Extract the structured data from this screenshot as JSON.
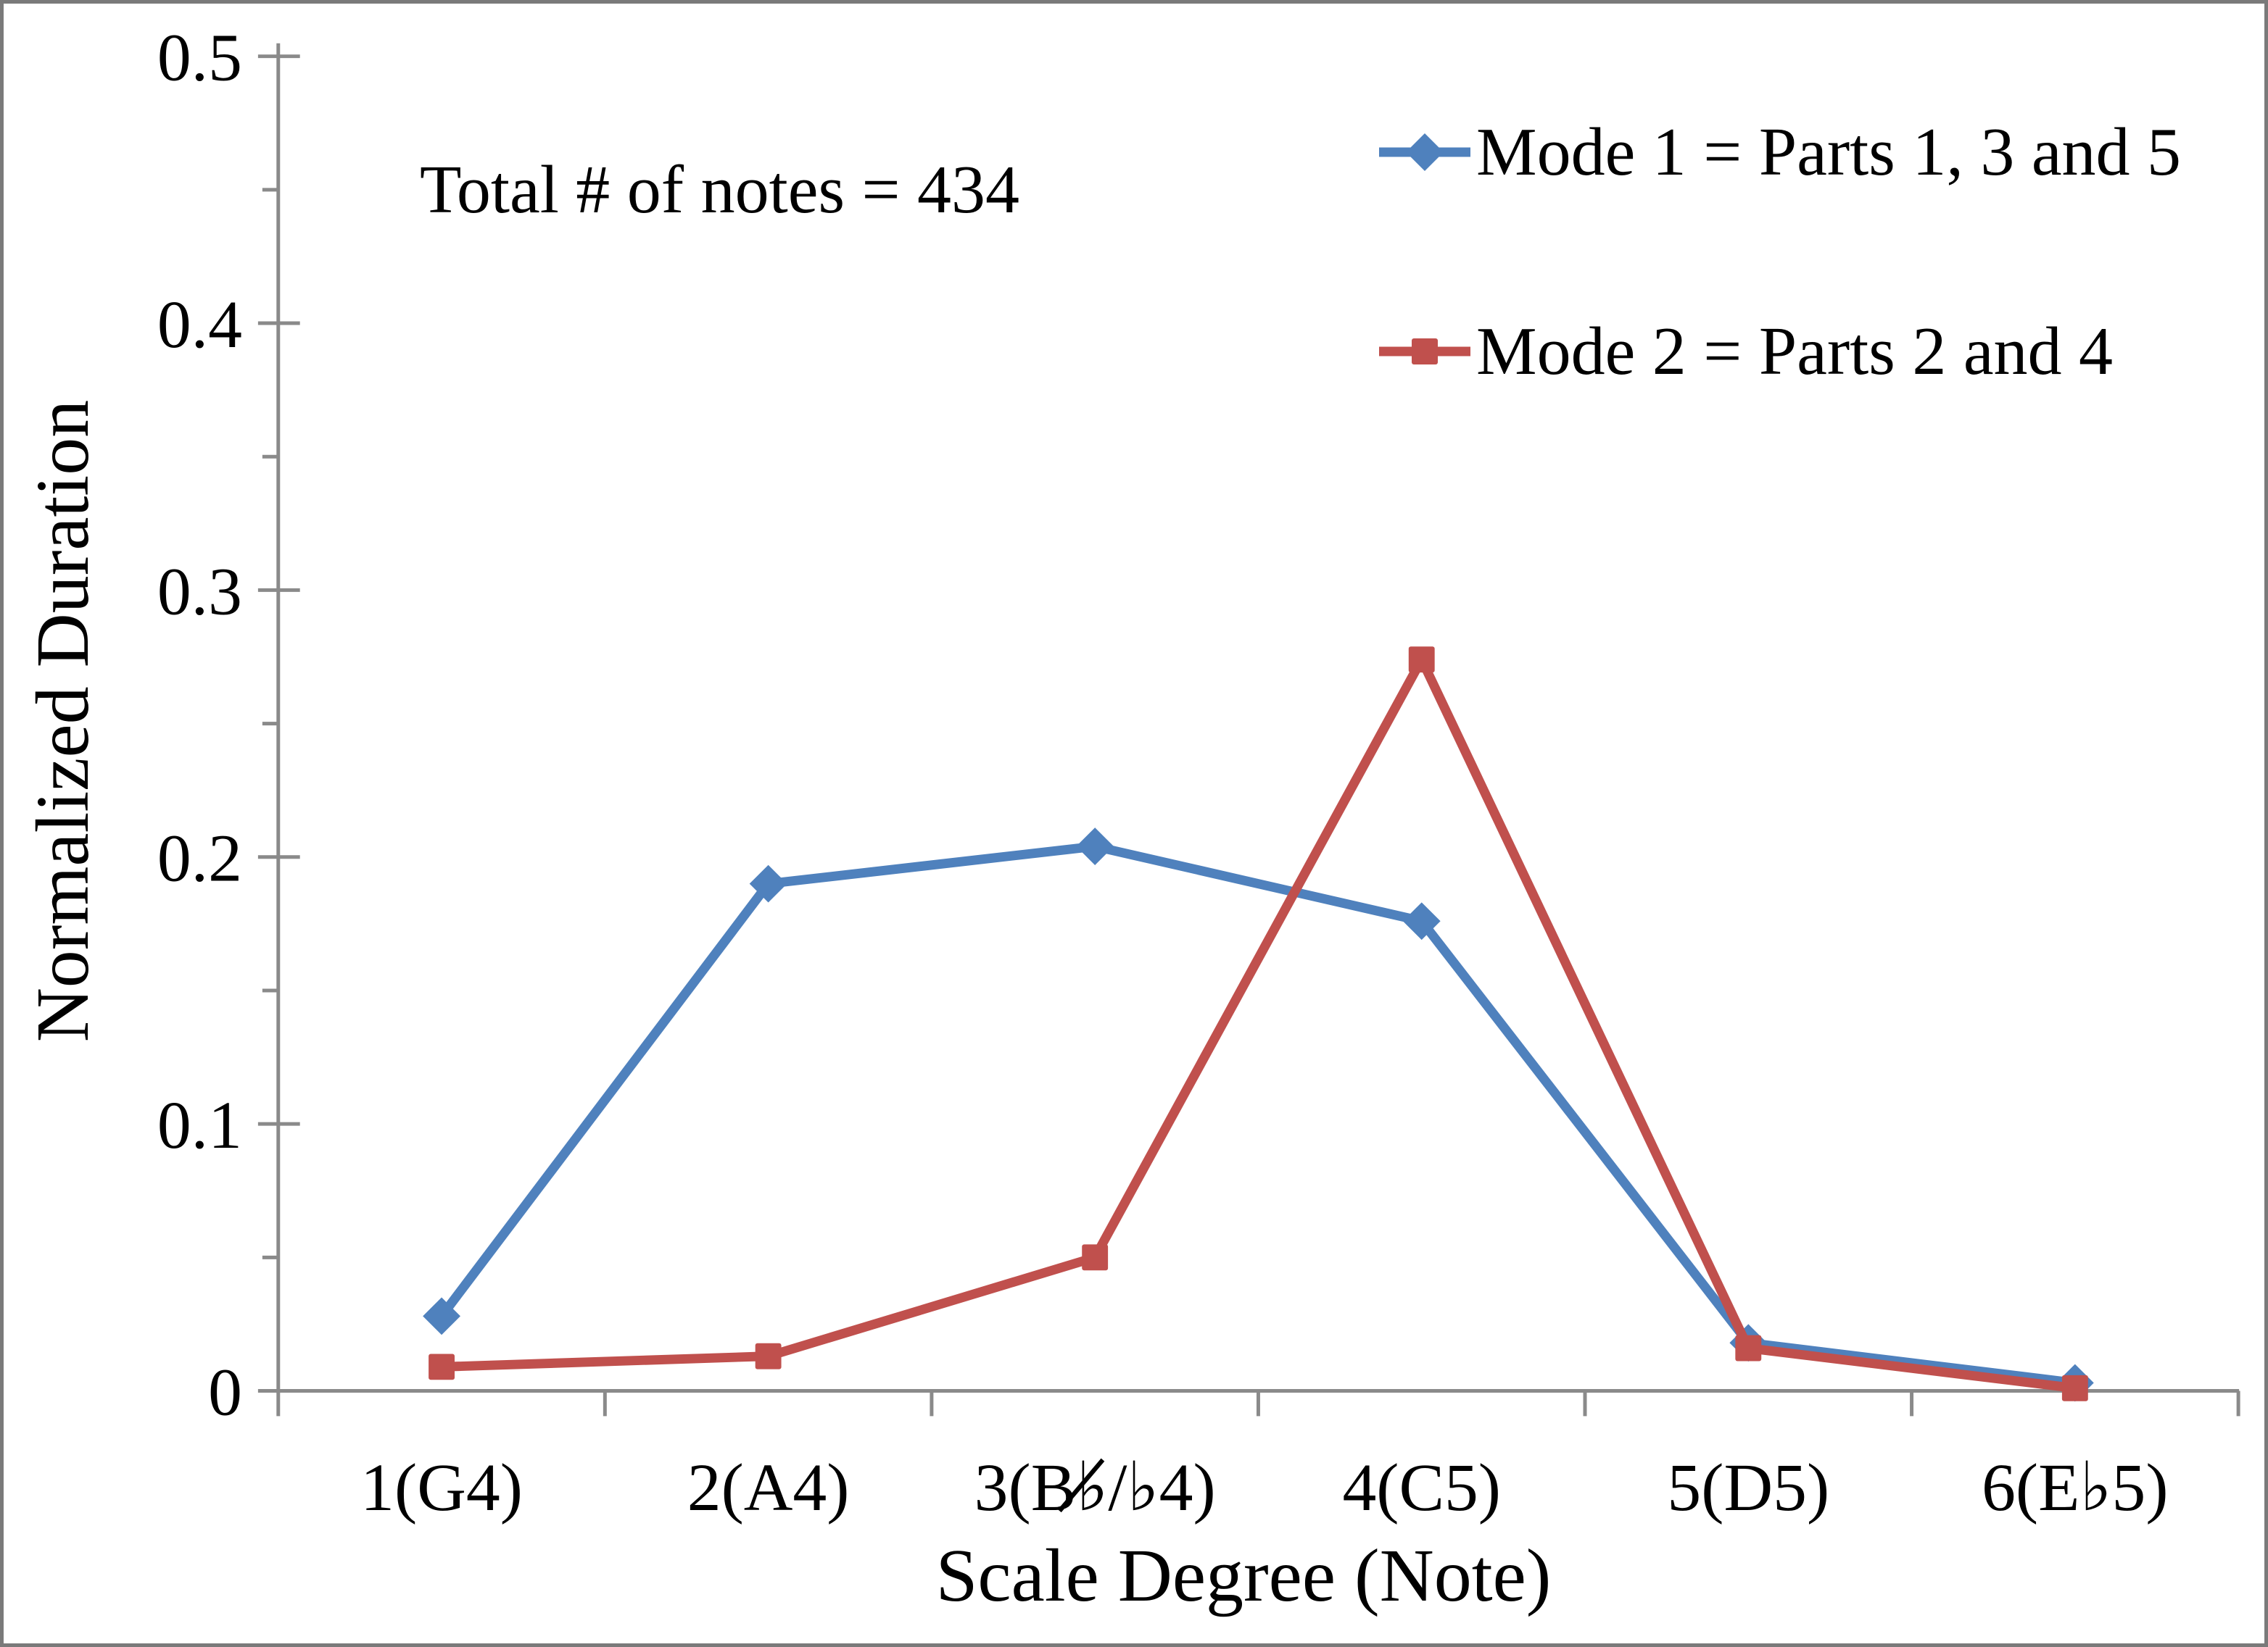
{
  "chart_data": {
    "type": "line",
    "title": "",
    "annotation": "Total # of notes = 434",
    "xlabel": "Scale Degree (Note)",
    "ylabel": "Normalized Duration",
    "categories": [
      "1(G4)",
      "2(A4)",
      "3(B♭̸/♭4)",
      "4(C5)",
      "5(D5)",
      "6(E♭5)"
    ],
    "series": [
      {
        "name": "Mode 1 = Parts 1, 3 and 5",
        "color": "#4F81BD",
        "marker": "diamond",
        "values": [
          0.028,
          0.19,
          0.204,
          0.176,
          0.018,
          0.003
        ]
      },
      {
        "name": "Mode 2 = Parts 2 and 4",
        "color": "#C0504D",
        "marker": "square",
        "values": [
          0.009,
          0.013,
          0.05,
          0.274,
          0.016,
          0.001
        ]
      }
    ],
    "y_axis": {
      "min": 0,
      "max": 0.5,
      "major_step": 0.1,
      "minor_step": 0.05,
      "tick_labels": [
        "0",
        "0.1",
        "0.2",
        "0.3",
        "0.4",
        "0.5"
      ]
    },
    "x_axis": {
      "tick_marks": "between-categories"
    },
    "axis_color": "#8a8a8a",
    "grid": false,
    "legend_position": "top-right"
  }
}
